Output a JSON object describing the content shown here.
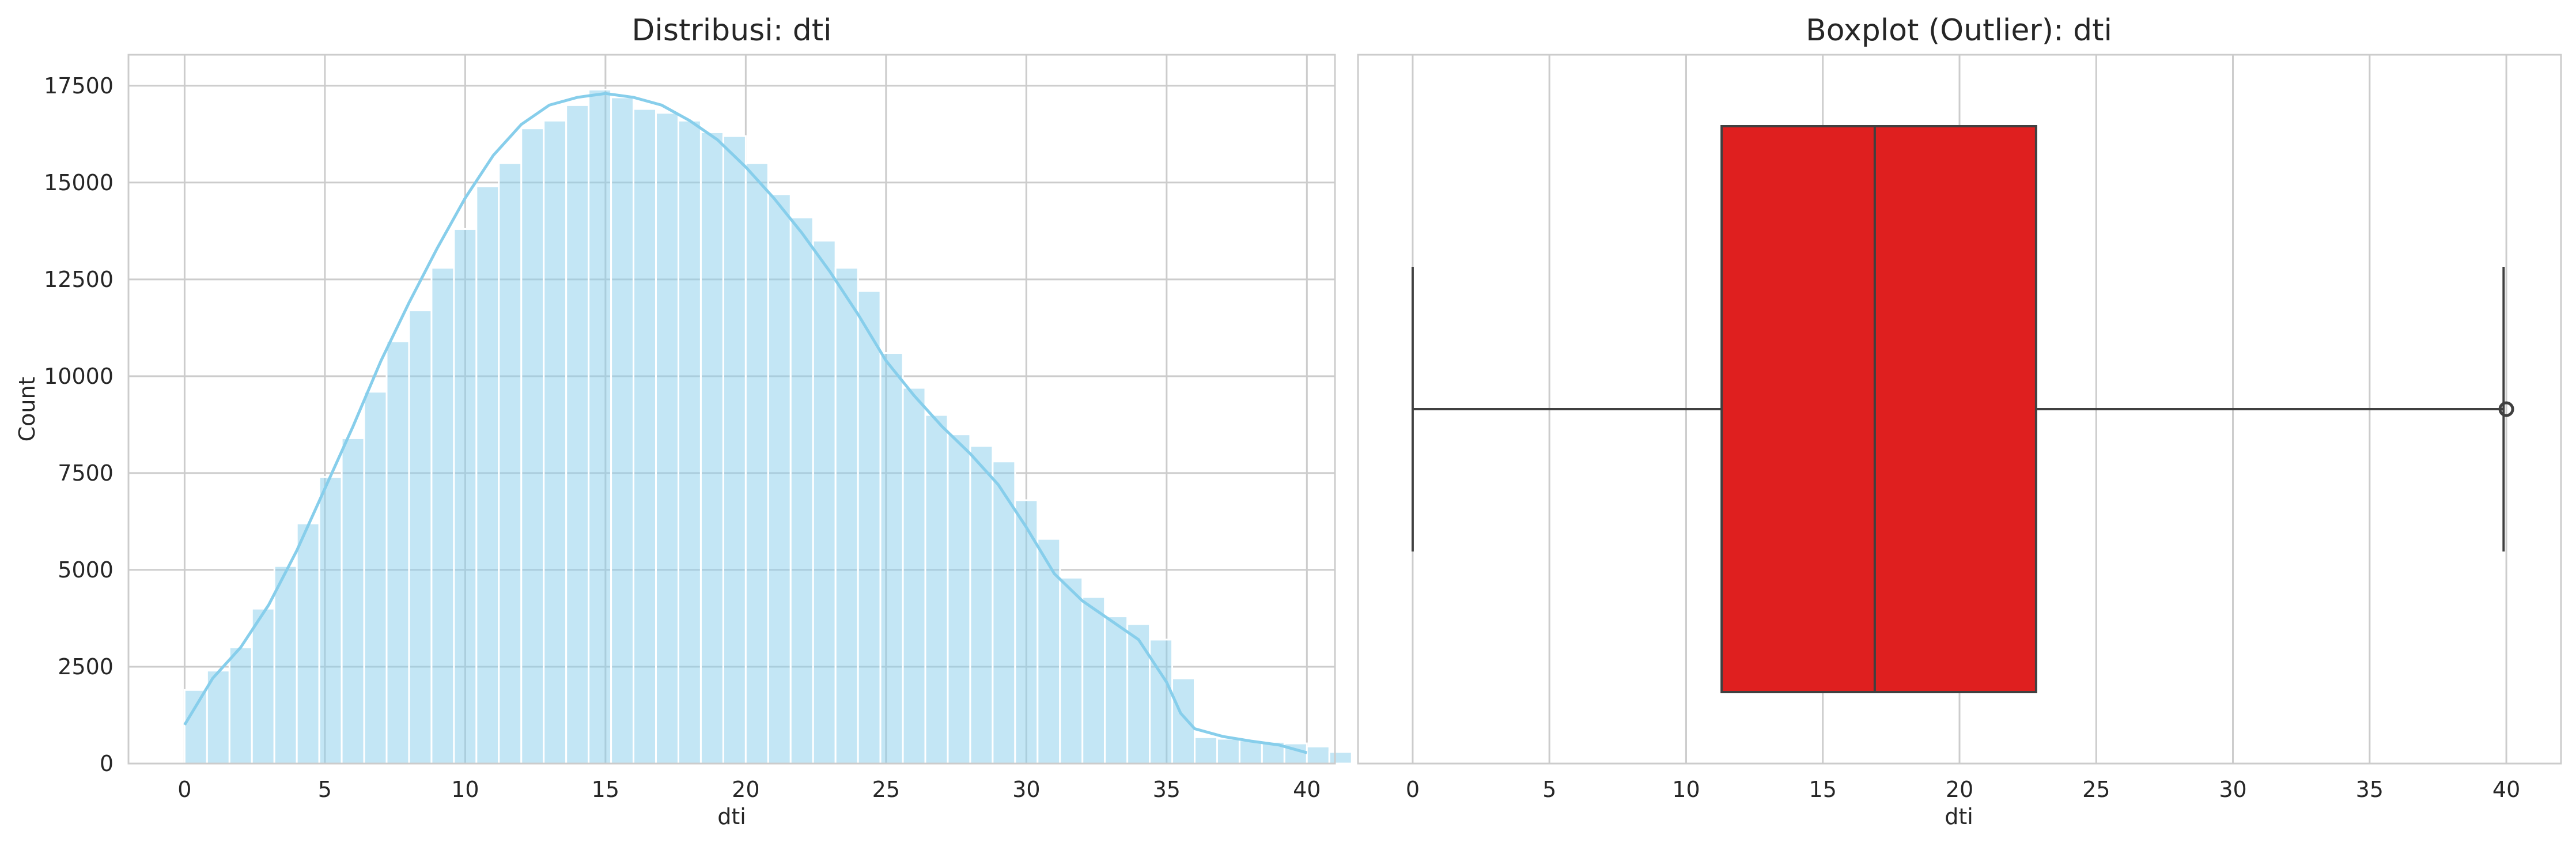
{
  "chart_data": [
    {
      "type": "bar",
      "subtype": "histogram with kde line",
      "title": "Distribusi: dti",
      "xlabel": "dti",
      "ylabel": "Count",
      "xlim": [
        -2,
        41
      ],
      "ylim": [
        0,
        18300
      ],
      "xticks": [
        0,
        5,
        10,
        15,
        20,
        25,
        30,
        35,
        40
      ],
      "yticks": [
        0,
        2500,
        5000,
        7500,
        10000,
        12500,
        15000,
        17500
      ],
      "grid": true,
      "bar_color": "#87ceeb",
      "bin_start": 0,
      "bin_width": 0.8,
      "values": [
        1900,
        2400,
        3000,
        4000,
        5100,
        6200,
        7400,
        8400,
        9600,
        10900,
        11700,
        12800,
        13800,
        14900,
        15500,
        16400,
        16600,
        17000,
        17400,
        17200,
        16900,
        16800,
        16600,
        16300,
        16200,
        15500,
        14700,
        14100,
        13500,
        12800,
        12200,
        10600,
        9700,
        9000,
        8500,
        8200,
        7800,
        6800,
        5800,
        4800,
        4300,
        3800,
        3600,
        3200,
        2200,
        680,
        640,
        600,
        560,
        520,
        440,
        300
      ],
      "kde": {
        "x": [
          0,
          1,
          2,
          3,
          4,
          5,
          6,
          7,
          8,
          9,
          10,
          11,
          12,
          13,
          14,
          15,
          16,
          17,
          18,
          19,
          20,
          21,
          22,
          23,
          24,
          25,
          26,
          27,
          28,
          29,
          30,
          31,
          32,
          33,
          34,
          35,
          35.5,
          36,
          37,
          38,
          39,
          40
        ],
        "y": [
          1000,
          2200,
          3000,
          4100,
          5500,
          7100,
          8700,
          10400,
          11900,
          13300,
          14600,
          15700,
          16500,
          17000,
          17200,
          17300,
          17200,
          17000,
          16600,
          16100,
          15400,
          14600,
          13700,
          12700,
          11600,
          10400,
          9500,
          8700,
          8000,
          7200,
          6100,
          4900,
          4200,
          3700,
          3200,
          2100,
          1300,
          900,
          700,
          580,
          480,
          280
        ]
      }
    },
    {
      "type": "boxplot",
      "title": "Boxplot (Outlier): dti",
      "xlabel": "dti",
      "xlim": [
        -2,
        42
      ],
      "xticks": [
        0,
        5,
        10,
        15,
        20,
        25,
        30,
        35,
        40
      ],
      "grid": true,
      "box_color": "#df1f1f",
      "whisker_low": 0,
      "q1": 11.3,
      "median": 16.9,
      "q3": 22.8,
      "whisker_high": 39.9,
      "outliers": [
        40.0
      ]
    }
  ]
}
